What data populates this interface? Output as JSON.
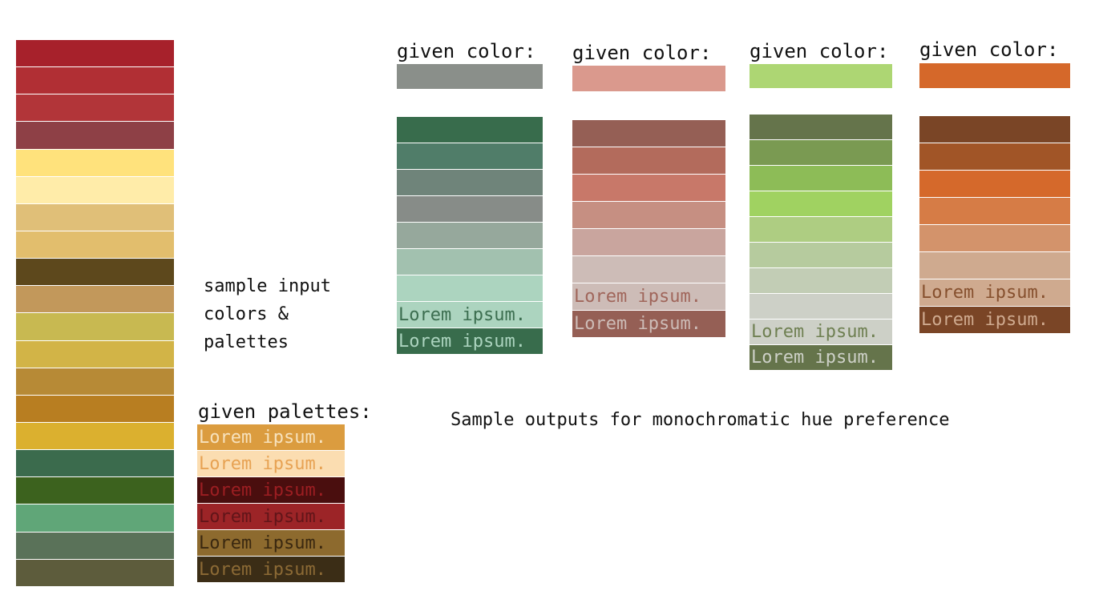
{
  "input_colors": [
    "#A7212B",
    "#B12F34",
    "#B23539",
    "#8E4046",
    "#FFE27C",
    "#FFECA9",
    "#E0BF78",
    "#E2BE6D",
    "#5D481C",
    "#C2985B",
    "#C8B951",
    "#D2B447",
    "#B78A36",
    "#B87E21",
    "#DBB02F",
    "#3B6B4D",
    "#3C621E",
    "#60A678",
    "#5A7259",
    "#5D5C3C"
  ],
  "caption_left": "sample input\ncolors &\npalettes",
  "given_palettes": {
    "label": "given palettes:",
    "items": [
      {
        "text": "Lorem ipsum.",
        "bg": "#DB9C3F",
        "fg": "#F7E2BD"
      },
      {
        "text": "Lorem ipsum.",
        "bg": "#FBDDB1",
        "fg": "#E7A253"
      },
      {
        "text": "Lorem ipsum.",
        "bg": "#4A0E0E",
        "fg": "#9C1E22"
      },
      {
        "text": "Lorem ipsum.",
        "bg": "#9C2427",
        "fg": "#611519"
      },
      {
        "text": "Lorem ipsum.",
        "bg": "#8D6A2E",
        "fg": "#3A2810"
      },
      {
        "text": "Lorem ipsum.",
        "bg": "#3B2D16",
        "fg": "#8C6A35"
      }
    ]
  },
  "outputs": [
    {
      "given_label": "given color:",
      "given_color": "#8A8F8A",
      "swatches": [
        "#386C4C",
        "#507D69",
        "#6F847A",
        "#878C88",
        "#96A89C",
        "#A2C1AF",
        "#ACD4BF"
      ],
      "lorem": [
        {
          "text": "Lorem ipsum.",
          "bg": "#ACD4BF",
          "fg": "#3C6E50"
        },
        {
          "text": "Lorem ipsum.",
          "bg": "#386C4C",
          "fg": "#ACD4BF"
        }
      ]
    },
    {
      "given_label": "given color:",
      "given_color": "#DA998D",
      "swatches": [
        "#955F55",
        "#B36B5C",
        "#C87869",
        "#C68F82",
        "#C9A59E",
        "#CDBCB7"
      ],
      "lorem": [
        {
          "text": "Lorem ipsum.",
          "bg": "#CDBCB7",
          "fg": "#A0665B"
        },
        {
          "text": "Lorem ipsum.",
          "bg": "#955F55",
          "fg": "#CDBCB7"
        }
      ]
    },
    {
      "given_label": "given color:",
      "given_color": "#ADD673",
      "swatches": [
        "#65744B",
        "#7A9A52",
        "#8DBC57",
        "#A0D261",
        "#AECD82",
        "#B6CB9E",
        "#C2CDB5",
        "#CDD0C7"
      ],
      "lorem": [
        {
          "text": "Lorem ipsum.",
          "bg": "#CDD0C7",
          "fg": "#6F8052"
        },
        {
          "text": "Lorem ipsum.",
          "bg": "#65744B",
          "fg": "#CDD0C7"
        }
      ]
    },
    {
      "given_label": "given color:",
      "given_color": "#D5682A",
      "swatches": [
        "#7A4526",
        "#A15527",
        "#D5692B",
        "#D67C46",
        "#D3936B",
        "#CFAA8F"
      ],
      "lorem": [
        {
          "text": "Lorem ipsum.",
          "bg": "#CFAA8F",
          "fg": "#86502E"
        },
        {
          "text": "Lorem ipsum.",
          "bg": "#7A4526",
          "fg": "#CFAA8F"
        }
      ]
    }
  ],
  "caption_right": "Sample outputs for monochromatic hue preference"
}
